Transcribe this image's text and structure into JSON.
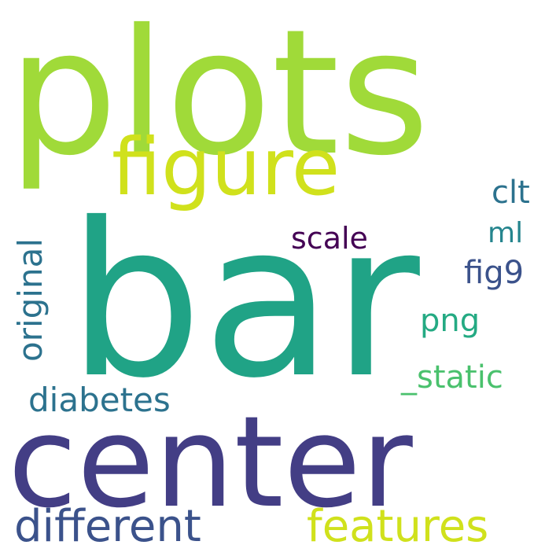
{
  "words": {
    "plots": {
      "text": "plots",
      "color": "#a0da39"
    },
    "bar": {
      "text": "bar",
      "color": "#20a386"
    },
    "center": {
      "text": "center",
      "color": "#433e85"
    },
    "figure": {
      "text": "figure",
      "color": "#d0e11c"
    },
    "different": {
      "text": "different",
      "color": "#3b528b"
    },
    "features": {
      "text": "features",
      "color": "#d0e11c"
    },
    "diabetes": {
      "text": "diabetes",
      "color": "#2c728e"
    },
    "static": {
      "text": "_static",
      "color": "#4ac16d"
    },
    "png": {
      "text": "png",
      "color": "#24aa83"
    },
    "fig9": {
      "text": "fig9",
      "color": "#3b528b"
    },
    "ml": {
      "text": "ml",
      "color": "#25858e"
    },
    "clt": {
      "text": "clt",
      "color": "#2c728e"
    },
    "scale": {
      "text": "scale",
      "color": "#440154"
    },
    "original": {
      "text": "original",
      "color": "#2c728e"
    }
  }
}
